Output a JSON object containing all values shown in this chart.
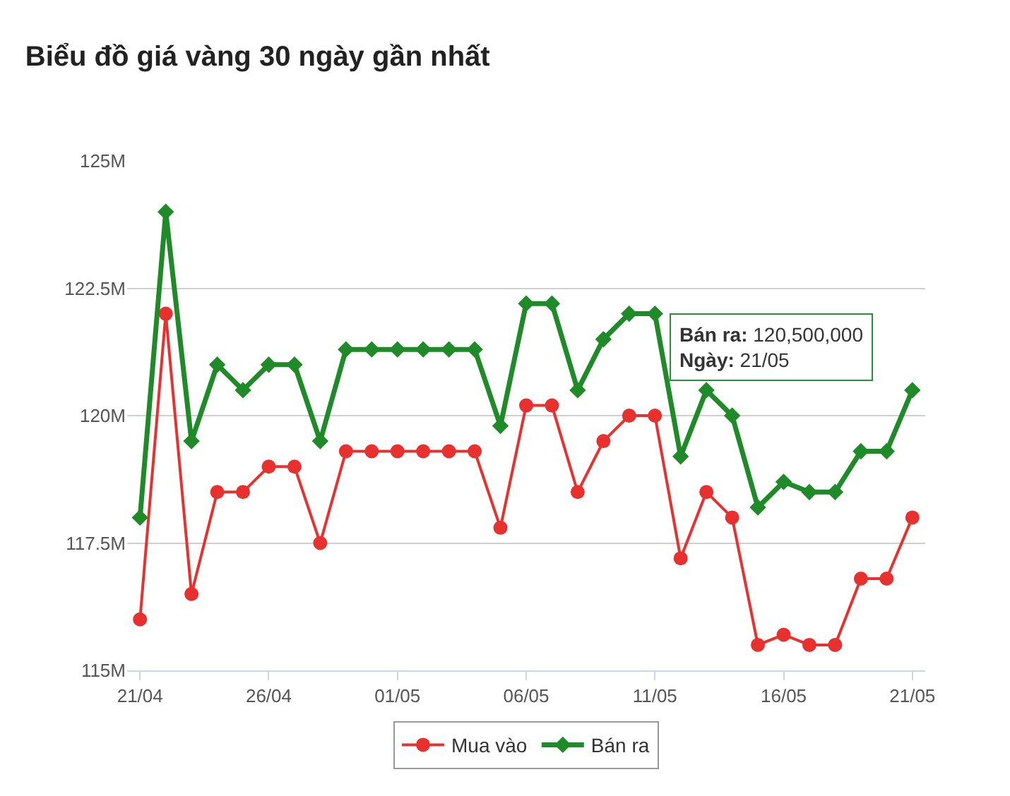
{
  "chart_data": {
    "type": "line",
    "title": "Biểu đồ giá vàng 30 ngày gần nhất",
    "categories": [
      "21/04",
      null,
      null,
      null,
      null,
      "26/04",
      null,
      null,
      null,
      null,
      "01/05",
      null,
      null,
      null,
      null,
      "06/05",
      null,
      null,
      null,
      null,
      "11/05",
      null,
      null,
      null,
      null,
      "16/05",
      null,
      null,
      null,
      null,
      "21/05"
    ],
    "series": [
      {
        "name": "Mua vào",
        "color": "#e8312f",
        "marker": "circle",
        "values": [
          116,
          122,
          116.5,
          118.5,
          118.5,
          119,
          119,
          117.5,
          119.3,
          119.3,
          119.3,
          119.3,
          119.3,
          119.3,
          117.8,
          120.2,
          120.2,
          118.5,
          119.5,
          120,
          120,
          117.2,
          118.5,
          118,
          115.5,
          115.7,
          115.5,
          115.5,
          116.8,
          116.8,
          118
        ]
      },
      {
        "name": "Bán ra",
        "color": "#1e8a28",
        "marker": "diamond",
        "values": [
          118,
          124,
          119.5,
          121,
          120.5,
          121,
          121,
          119.5,
          121.3,
          121.3,
          121.3,
          121.3,
          121.3,
          121.3,
          119.8,
          122.2,
          122.2,
          120.5,
          121.5,
          122,
          122,
          119.2,
          120.5,
          120,
          118.2,
          118.7,
          118.5,
          118.5,
          119.3,
          119.3,
          120.5
        ]
      }
    ],
    "ylim": [
      115,
      125
    ],
    "yticks": [
      {
        "value": 115,
        "label": "115M"
      },
      {
        "value": 117.5,
        "label": "117.5M"
      },
      {
        "value": 120,
        "label": "120M"
      },
      {
        "value": 122.5,
        "label": "122.5M"
      },
      {
        "value": 125,
        "label": "125M"
      }
    ],
    "grid": "y",
    "legend": "bottom",
    "annotations": [
      {
        "text": "Bán ra: 120,500,000\nNgày: 21/05",
        "x": "21/05",
        "y": 120.5
      }
    ]
  }
}
